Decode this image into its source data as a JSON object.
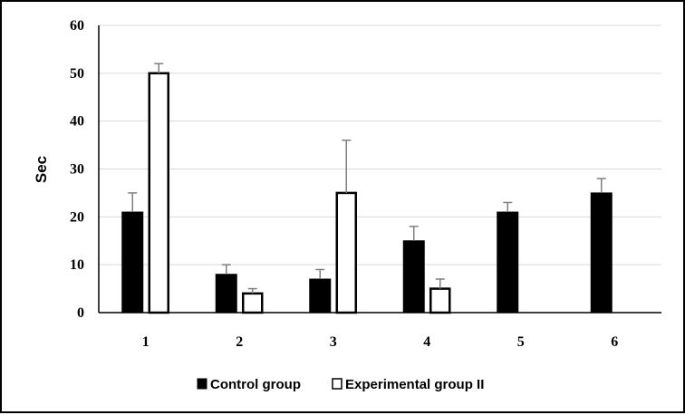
{
  "chart_data": {
    "type": "bar",
    "categories": [
      "1",
      "2",
      "3",
      "4",
      "5",
      "6"
    ],
    "ylabel": "Sec",
    "xlabel": "",
    "ylim": [
      0,
      60
    ],
    "yticks": [
      0,
      10,
      20,
      30,
      40,
      50,
      60
    ],
    "grid": true,
    "legend_position": "bottom",
    "series": [
      {
        "name": "Control group",
        "color": "#000000",
        "fill": "solid",
        "values": [
          21,
          8,
          7,
          15,
          21,
          25
        ],
        "error_upper": [
          25,
          10,
          9,
          18,
          23,
          28
        ]
      },
      {
        "name": "Experimental group II",
        "color": "#000000",
        "fill": "hollow",
        "values": [
          50,
          4,
          25,
          5,
          null,
          null
        ],
        "error_upper": [
          52,
          5,
          36,
          7,
          null,
          null
        ]
      }
    ]
  }
}
